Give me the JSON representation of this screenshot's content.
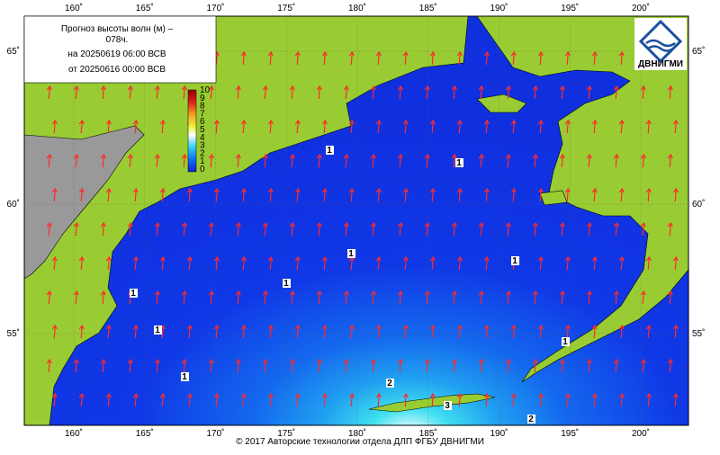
{
  "map": {
    "title": [
      "Прогноз высоты волн (м) –",
      "078ч.",
      "на 20250619 06:00 ВСВ",
      "от 20250616 00:00 ВСВ"
    ],
    "logo": "ДВНИГМИ",
    "lon_labels": [
      "160˚",
      "165˚",
      "170˚",
      "175˚",
      "180˚",
      "185˚",
      "190˚",
      "195˚",
      "200˚"
    ],
    "lat_labels": [
      "65˚",
      "60˚",
      "55˚"
    ],
    "colorbar": [
      10,
      9,
      8,
      7,
      6,
      5,
      4,
      3,
      2,
      1,
      0
    ],
    "contour_labels": [
      "1",
      "1",
      "1",
      "1",
      "1",
      "1",
      "1",
      "1",
      "1",
      "2",
      "3",
      "2"
    ],
    "footer": "© 2017 Авторские технологии отдела ДЛП ФГБУ ДВНИГМИ"
  }
}
